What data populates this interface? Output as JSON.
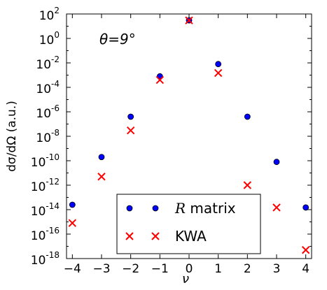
{
  "chart_data": {
    "type": "scatter",
    "annotation": "θ=9°",
    "xlabel": "ν",
    "ylabel": "dσ/dΩ (a.u.)",
    "xlim": [
      -4.2,
      4.2
    ],
    "ylim": [
      1e-18,
      100
    ],
    "yscale": "log",
    "grid": false,
    "legend_position": "bottom-center",
    "x_ticks": [
      -4,
      -3,
      -2,
      -1,
      0,
      1,
      2,
      3,
      4
    ],
    "x_tick_labels": [
      "−4",
      "−3",
      "−2",
      "−1",
      "0",
      "1",
      "2",
      "3",
      "4"
    ],
    "y_ticks": [
      {
        "base": "10",
        "exp": "2"
      },
      {
        "base": "10",
        "exp": "0"
      },
      {
        "base": "10",
        "exp": "-2"
      },
      {
        "base": "10",
        "exp": "-4"
      },
      {
        "base": "10",
        "exp": "-6"
      },
      {
        "base": "10",
        "exp": "-8"
      },
      {
        "base": "10",
        "exp": "-10"
      },
      {
        "base": "10",
        "exp": "-12"
      },
      {
        "base": "10",
        "exp": "-14"
      },
      {
        "base": "10",
        "exp": "-16"
      },
      {
        "base": "10",
        "exp": "-18"
      }
    ],
    "series": [
      {
        "name": "R matrix",
        "marker": "circle",
        "color": "#0000ff",
        "x": [
          -4,
          -3,
          -2,
          -1,
          0,
          1,
          2,
          3,
          4
        ],
        "y": [
          2.5e-14,
          2e-10,
          4e-07,
          0.0008,
          30,
          0.008,
          4e-07,
          8e-11,
          1.5e-14
        ]
      },
      {
        "name": "KWA",
        "marker": "x",
        "color": "#ff0000",
        "x": [
          -4,
          -3,
          -2,
          -1,
          0,
          1,
          2,
          3,
          4
        ],
        "y": [
          8e-16,
          5e-12,
          3e-08,
          0.0004,
          30,
          0.0015,
          1e-12,
          1.5e-14,
          5e-18
        ]
      }
    ]
  },
  "legend": {
    "r_italic": "R",
    "r_rest": " matrix",
    "kwa": "KWA"
  }
}
